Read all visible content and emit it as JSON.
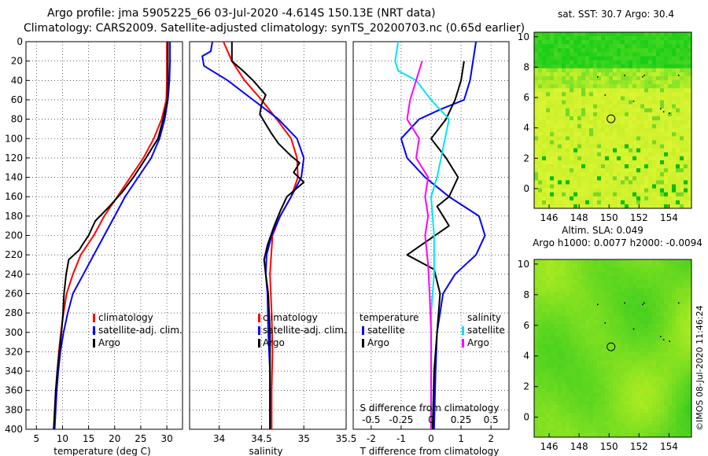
{
  "header": {
    "title_line1": "Argo profile: jma 5905225_66 03-Jul-2020 -4.614S 150.13E (NRT data)",
    "title_line2": "Climatology: CARS2009. Satellite-adjusted climatology: synTS_20200703.nc (0.65d earlier)"
  },
  "colors": {
    "climatology": "#ff0000",
    "satellite": "#0000ff",
    "argo": "#000000",
    "sat_salinity": "#00e5ee",
    "argo_salinity_diff": "#ff00ff"
  },
  "chart_data": [
    {
      "id": "temperature",
      "type": "line",
      "xlabel": "temperature (deg C)",
      "ylabel": "",
      "xlim": [
        3,
        33
      ],
      "ylim": [
        400,
        0
      ],
      "xticks": [
        5,
        10,
        15,
        20,
        25,
        30
      ],
      "yticks": [
        0,
        20,
        40,
        60,
        80,
        100,
        120,
        140,
        160,
        180,
        200,
        220,
        240,
        260,
        280,
        300,
        320,
        340,
        360,
        380,
        400
      ],
      "legend": [
        "climatology",
        "satellite-adj. clim.",
        "Argo"
      ],
      "series": [
        {
          "name": "climatology",
          "color": "#ff0000",
          "points": [
            [
              30,
              0
            ],
            [
              30,
              40
            ],
            [
              29.9,
              60
            ],
            [
              29,
              80
            ],
            [
              27.5,
              100
            ],
            [
              25.5,
              120
            ],
            [
              23,
              140
            ],
            [
              20.5,
              160
            ],
            [
              18,
              180
            ],
            [
              16,
              200
            ],
            [
              13.5,
              220
            ],
            [
              12,
              240
            ],
            [
              10.8,
              260
            ],
            [
              10.2,
              280
            ],
            [
              9.7,
              300
            ],
            [
              9.3,
              320
            ],
            [
              9,
              340
            ],
            [
              8.8,
              360
            ],
            [
              8.6,
              380
            ],
            [
              8.4,
              400
            ]
          ]
        },
        {
          "name": "satellite-adj. clim.",
          "color": "#0000ff",
          "points": [
            [
              30.6,
              0
            ],
            [
              30.6,
              20
            ],
            [
              30.5,
              40
            ],
            [
              30.2,
              60
            ],
            [
              29.6,
              80
            ],
            [
              28.6,
              100
            ],
            [
              27,
              120
            ],
            [
              24.5,
              140
            ],
            [
              22,
              160
            ],
            [
              20,
              180
            ],
            [
              18,
              200
            ],
            [
              16,
              220
            ],
            [
              14,
              240
            ],
            [
              12,
              260
            ],
            [
              11,
              280
            ],
            [
              10.2,
              300
            ],
            [
              9.6,
              320
            ],
            [
              9.2,
              340
            ],
            [
              8.9,
              360
            ],
            [
              8.7,
              380
            ],
            [
              8.5,
              400
            ]
          ]
        },
        {
          "name": "Argo",
          "color": "#000000",
          "points": [
            [
              30.2,
              0
            ],
            [
              30.2,
              40
            ],
            [
              30.1,
              60
            ],
            [
              29.3,
              80
            ],
            [
              28.3,
              100
            ],
            [
              26,
              120
            ],
            [
              23.6,
              140
            ],
            [
              21.5,
              155
            ],
            [
              19,
              170
            ],
            [
              16.3,
              185
            ],
            [
              15,
              200
            ],
            [
              14,
              208
            ],
            [
              13.2,
              215
            ],
            [
              11.2,
              225
            ],
            [
              10.7,
              240
            ],
            [
              10.3,
              260
            ],
            [
              10.1,
              280
            ],
            [
              9.8,
              300
            ],
            [
              9.4,
              320
            ],
            [
              9,
              340
            ],
            [
              8.7,
              360
            ],
            [
              8.5,
              380
            ],
            [
              8.3,
              400
            ]
          ]
        }
      ]
    },
    {
      "id": "salinity",
      "type": "line",
      "xlabel": "salinity",
      "ylabel": "",
      "xlim": [
        33.65,
        35.5
      ],
      "ylim": [
        400,
        0
      ],
      "xticks": [
        34,
        34.5,
        35,
        35.5
      ],
      "xtick_labels": [
        "34",
        "34.5",
        "35",
        "35.5"
      ],
      "legend": [
        "climatology",
        "satellite-adj. clim.",
        "Argo"
      ],
      "series": [
        {
          "name": "climatology",
          "color": "#ff0000",
          "points": [
            [
              34.05,
              0
            ],
            [
              34.15,
              20
            ],
            [
              34.3,
              40
            ],
            [
              34.5,
              60
            ],
            [
              34.68,
              80
            ],
            [
              34.85,
              100
            ],
            [
              34.92,
              120
            ],
            [
              34.93,
              140
            ],
            [
              34.85,
              160
            ],
            [
              34.72,
              180
            ],
            [
              34.63,
              200
            ],
            [
              34.6,
              240
            ],
            [
              34.62,
              280
            ],
            [
              34.63,
              320
            ],
            [
              34.62,
              360
            ],
            [
              34.62,
              400
            ]
          ]
        },
        {
          "name": "satellite-adj. clim.",
          "color": "#0000ff",
          "points": [
            [
              33.92,
              0
            ],
            [
              33.9,
              10
            ],
            [
              33.8,
              15
            ],
            [
              33.82,
              25
            ],
            [
              34.1,
              40
            ],
            [
              34.4,
              60
            ],
            [
              34.7,
              80
            ],
            [
              34.92,
              100
            ],
            [
              35,
              120
            ],
            [
              34.97,
              140
            ],
            [
              34.85,
              160
            ],
            [
              34.72,
              180
            ],
            [
              34.62,
              200
            ],
            [
              34.56,
              220
            ],
            [
              34.55,
              240
            ],
            [
              34.57,
              260
            ],
            [
              34.58,
              300
            ],
            [
              34.6,
              340
            ],
            [
              34.6,
              400
            ]
          ]
        },
        {
          "name": "Argo",
          "color": "#000000",
          "points": [
            [
              34.15,
              0
            ],
            [
              34.15,
              20
            ],
            [
              34.28,
              30
            ],
            [
              34.4,
              40
            ],
            [
              34.55,
              55
            ],
            [
              34.5,
              65
            ],
            [
              34.48,
              75
            ],
            [
              34.55,
              85
            ],
            [
              34.62,
              95
            ],
            [
              34.7,
              105
            ],
            [
              34.85,
              118
            ],
            [
              34.95,
              125
            ],
            [
              34.88,
              135
            ],
            [
              35,
              145
            ],
            [
              34.8,
              160
            ],
            [
              34.72,
              175
            ],
            [
              34.65,
              190
            ],
            [
              34.57,
              210
            ],
            [
              34.53,
              225
            ],
            [
              34.55,
              240
            ],
            [
              34.58,
              260
            ],
            [
              34.6,
              300
            ],
            [
              34.6,
              340
            ],
            [
              34.6,
              400
            ]
          ]
        }
      ]
    },
    {
      "id": "differences",
      "type": "line",
      "xlabel": "T difference from climatology",
      "xlabel_top": "S difference from climatology",
      "xlim": [
        -2.6,
        2.6
      ],
      "ylim": [
        400,
        0
      ],
      "xticks": [
        -2,
        -1,
        0,
        1,
        2
      ],
      "xticks_top": [
        -0.5,
        -0.25,
        0,
        0.25,
        0.5
      ],
      "xticks_top_labels": [
        "-0.5",
        "-0.25",
        "0",
        "0.25",
        "0.5"
      ],
      "legend_left_title": "temperature",
      "legend_right_title": "salinity",
      "legend": [
        "satellite",
        "Argo",
        "satellite",
        "Argo"
      ],
      "series": [
        {
          "name": "T satellite",
          "color": "#0000ff",
          "points": [
            [
              1.5,
              0
            ],
            [
              1.4,
              20
            ],
            [
              1.3,
              40
            ],
            [
              1.1,
              60
            ],
            [
              0.3,
              70
            ],
            [
              -0.4,
              80
            ],
            [
              -1,
              100
            ],
            [
              -0.8,
              120
            ],
            [
              -0.2,
              140
            ],
            [
              0.6,
              160
            ],
            [
              1.6,
              180
            ],
            [
              1.8,
              200
            ],
            [
              1.5,
              220
            ],
            [
              0.8,
              240
            ],
            [
              0.4,
              260
            ],
            [
              0.2,
              300
            ],
            [
              0.15,
              340
            ],
            [
              0.1,
              400
            ]
          ]
        },
        {
          "name": "T Argo",
          "color": "#000000",
          "points": [
            [
              1.1,
              20
            ],
            [
              1.0,
              40
            ],
            [
              0.8,
              60
            ],
            [
              0.5,
              80
            ],
            [
              0,
              100
            ],
            [
              0.5,
              120
            ],
            [
              0.9,
              140
            ],
            [
              0.6,
              160
            ],
            [
              0.2,
              170
            ],
            [
              0.6,
              190
            ],
            [
              -0.8,
              220
            ],
            [
              0.1,
              235
            ],
            [
              0.3,
              260
            ],
            [
              0.2,
              300
            ],
            [
              0.1,
              340
            ],
            [
              0.05,
              400
            ]
          ]
        },
        {
          "name": "S satellite",
          "color": "#00e5ee",
          "points": [
            [
              -1.1,
              0
            ],
            [
              -1.2,
              20
            ],
            [
              -1.1,
              30
            ],
            [
              -0.5,
              40
            ],
            [
              0,
              60
            ],
            [
              0.6,
              80
            ],
            [
              0.4,
              110
            ],
            [
              0.2,
              140
            ],
            [
              0,
              160
            ],
            [
              0.1,
              200
            ],
            [
              0.1,
              240
            ],
            [
              0,
              280
            ],
            [
              0,
              320
            ],
            [
              0,
              360
            ],
            [
              0,
              400
            ]
          ]
        },
        {
          "name": "S Argo",
          "color": "#ff00ff",
          "points": [
            [
              -0.3,
              20
            ],
            [
              -0.4,
              30
            ],
            [
              -0.7,
              60
            ],
            [
              -0.8,
              80
            ],
            [
              -0.4,
              100
            ],
            [
              -0.5,
              120
            ],
            [
              -0.1,
              140
            ],
            [
              -0.2,
              160
            ],
            [
              -0.1,
              180
            ],
            [
              -0.2,
              200
            ],
            [
              -0.1,
              230
            ],
            [
              -0.05,
              260
            ],
            [
              0,
              300
            ],
            [
              0,
              340
            ],
            [
              0,
              400
            ]
          ]
        }
      ]
    },
    {
      "id": "sst_map",
      "type": "heatmap",
      "title": "sat. SST: 30.7 Argo: 30.4",
      "xlim": [
        145,
        155.5
      ],
      "ylim": [
        -1.3,
        10.3
      ],
      "xticks": [
        146,
        148,
        150,
        152,
        154
      ],
      "yticks": [
        0,
        2,
        4,
        6,
        8,
        10
      ],
      "marker": [
        150.13,
        4.6
      ]
    },
    {
      "id": "sla_map",
      "type": "heatmap",
      "title": "Altim. SLA: 0.049",
      "title2": "Argo h1000: 0.0077 h2000: -0.0094",
      "xlim": [
        145,
        155.5
      ],
      "ylim": [
        -1.3,
        10.3
      ],
      "xticks": [
        146,
        148,
        150,
        152,
        154
      ],
      "yticks": [
        0,
        2,
        4,
        6,
        8,
        10
      ],
      "marker": [
        150.13,
        4.6
      ]
    }
  ],
  "credit": "©IMOS 08-Jul-2020 11:46:24"
}
